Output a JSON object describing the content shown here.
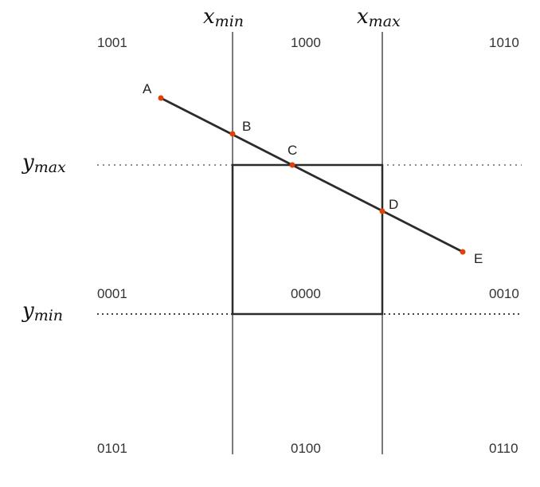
{
  "diagram": {
    "boundary_labels": {
      "x_min": {
        "base": "x",
        "sub": "min"
      },
      "x_max": {
        "base": "x",
        "sub": "max"
      },
      "y_max": {
        "base": "y",
        "sub": "max"
      },
      "y_min": {
        "base": "y",
        "sub": "min"
      }
    },
    "region_codes": {
      "top_left": "1001",
      "top_center": "1000",
      "top_right": "1010",
      "middle_left": "0001",
      "middle_center": "0000",
      "middle_right": "0010",
      "bottom_left": "0101",
      "bottom_center": "0100",
      "bottom_right": "0110"
    },
    "points": [
      {
        "label": "A"
      },
      {
        "label": "B"
      },
      {
        "label": "C"
      },
      {
        "label": "D"
      },
      {
        "label": "E"
      }
    ],
    "colors": {
      "line": "#2b2b2b",
      "point": "#e0400a",
      "boundary": "#222222",
      "dotted": "#666666"
    }
  }
}
